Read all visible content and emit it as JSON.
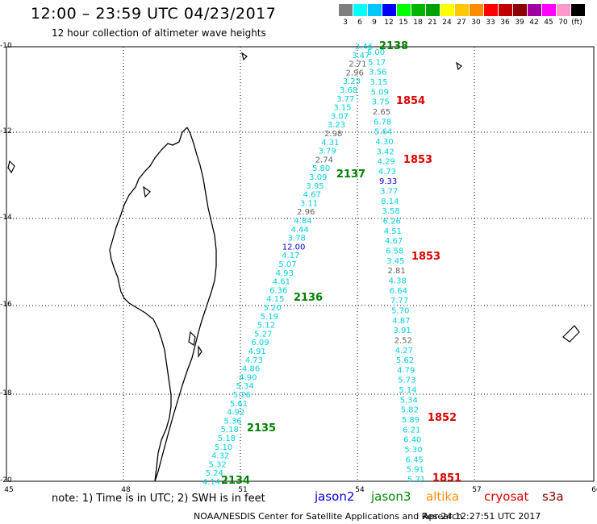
{
  "header": {
    "title": "12:00 – 23:59 UTC 04/23/2017",
    "subtitle": "12 hour collection of altimeter wave heights"
  },
  "color_scale": {
    "unit_label": "(ft)",
    "bins": [
      {
        "label": "3",
        "color": "#7f7f7f"
      },
      {
        "label": "6",
        "color": "#00ffff"
      },
      {
        "label": "9",
        "color": "#00c8ff"
      },
      {
        "label": "12",
        "color": "#0000ff"
      },
      {
        "label": "15",
        "color": "#00ff00"
      },
      {
        "label": "18",
        "color": "#00b400"
      },
      {
        "label": "21",
        "color": "#00a000"
      },
      {
        "label": "24",
        "color": "#ffff00"
      },
      {
        "label": "27",
        "color": "#ffc800"
      },
      {
        "label": "30",
        "color": "#ff8c00"
      },
      {
        "label": "33",
        "color": "#ff0000"
      },
      {
        "label": "36",
        "color": "#c00000"
      },
      {
        "label": "39",
        "color": "#8b0000"
      },
      {
        "label": "42",
        "color": "#a000a0"
      },
      {
        "label": "45",
        "color": "#ff00ff"
      },
      {
        "label": "70",
        "color": "#ff99cc"
      },
      {
        "label": "",
        "color": "#000000"
      }
    ]
  },
  "axes": {
    "y_ticks": [
      "-10",
      "-12",
      "-14",
      "-16",
      "-18",
      "-20"
    ],
    "x_ticks": [
      "45",
      "48",
      "51",
      "54",
      "57",
      "60"
    ]
  },
  "value_colors": {
    "cyan": "#00d0e0",
    "gray": "#606060",
    "blue": "#0000cc"
  },
  "tracks": [
    {
      "name": "west",
      "values": [
        [
          "3.46",
          "cyan"
        ],
        [
          "3.47",
          "cyan"
        ],
        [
          "2.71",
          "gray"
        ],
        [
          "2.96",
          "gray"
        ],
        [
          "3.23",
          "cyan"
        ],
        [
          "3.68",
          "cyan"
        ],
        [
          "3.77",
          "cyan"
        ],
        [
          "3.15",
          "cyan"
        ],
        [
          "3.07",
          "cyan"
        ],
        [
          "3.23",
          "cyan"
        ],
        [
          "2.98",
          "gray"
        ],
        [
          "4.31",
          "cyan"
        ],
        [
          "3.79",
          "cyan"
        ],
        [
          "2.74",
          "gray"
        ],
        [
          "5.80",
          "cyan"
        ],
        [
          "3.09",
          "cyan"
        ],
        [
          "3.95",
          "cyan"
        ],
        [
          "4.67",
          "cyan"
        ],
        [
          "3.11",
          "cyan"
        ],
        [
          "2.96",
          "gray"
        ],
        [
          "4.84",
          "cyan"
        ],
        [
          "4.44",
          "cyan"
        ],
        [
          "3.78",
          "cyan"
        ],
        [
          "12.00",
          "blue"
        ],
        [
          "4.17",
          "cyan"
        ],
        [
          "5.07",
          "cyan"
        ],
        [
          "4.93",
          "cyan"
        ],
        [
          "4.61",
          "cyan"
        ],
        [
          "6.36",
          "cyan"
        ],
        [
          "4.15",
          "cyan"
        ],
        [
          "5.20",
          "cyan"
        ],
        [
          "5.19",
          "cyan"
        ],
        [
          "5.12",
          "cyan"
        ],
        [
          "5.27",
          "cyan"
        ],
        [
          "6.09",
          "cyan"
        ],
        [
          "4.91",
          "cyan"
        ],
        [
          "4.73",
          "cyan"
        ],
        [
          "4.86",
          "cyan"
        ],
        [
          "4.90",
          "cyan"
        ],
        [
          "5.34",
          "cyan"
        ],
        [
          "5.26",
          "cyan"
        ],
        [
          "5.61",
          "cyan"
        ],
        [
          "4.92",
          "cyan"
        ],
        [
          "5.36",
          "cyan"
        ],
        [
          "5.18",
          "cyan"
        ],
        [
          "5.18",
          "cyan"
        ],
        [
          "5.10",
          "cyan"
        ],
        [
          "4.32",
          "cyan"
        ],
        [
          "5.32",
          "cyan"
        ],
        [
          "5.24",
          "cyan"
        ],
        [
          "4.14",
          "cyan"
        ]
      ]
    },
    {
      "name": "east",
      "values": [
        [
          "5.00",
          "cyan"
        ],
        [
          "5.17",
          "cyan"
        ],
        [
          "3.56",
          "cyan"
        ],
        [
          "3.15",
          "cyan"
        ],
        [
          "5.09",
          "cyan"
        ],
        [
          "3.75",
          "cyan"
        ],
        [
          "2.65",
          "gray"
        ],
        [
          "6.78",
          "cyan"
        ],
        [
          "5.64",
          "cyan"
        ],
        [
          "4.30",
          "cyan"
        ],
        [
          "3.42",
          "cyan"
        ],
        [
          "4.29",
          "cyan"
        ],
        [
          "4.73",
          "cyan"
        ],
        [
          "9.33",
          "blue"
        ],
        [
          "3.77",
          "cyan"
        ],
        [
          "8.14",
          "cyan"
        ],
        [
          "3.58",
          "cyan"
        ],
        [
          "6.26",
          "cyan"
        ],
        [
          "4.51",
          "cyan"
        ],
        [
          "4.67",
          "cyan"
        ],
        [
          "6.58",
          "cyan"
        ],
        [
          "3.45",
          "cyan"
        ],
        [
          "2.81",
          "gray"
        ],
        [
          "4.38",
          "cyan"
        ],
        [
          "6.64",
          "cyan"
        ],
        [
          "7.77",
          "cyan"
        ],
        [
          "5.70",
          "cyan"
        ],
        [
          "4.87",
          "cyan"
        ],
        [
          "3.91",
          "cyan"
        ],
        [
          "2.52",
          "gray"
        ],
        [
          "4.27",
          "cyan"
        ],
        [
          "5.62",
          "cyan"
        ],
        [
          "4.79",
          "cyan"
        ],
        [
          "5.73",
          "cyan"
        ],
        [
          "5.14",
          "cyan"
        ],
        [
          "5.34",
          "cyan"
        ],
        [
          "5.82",
          "cyan"
        ],
        [
          "5.89",
          "cyan"
        ],
        [
          "6.21",
          "cyan"
        ],
        [
          "6.40",
          "cyan"
        ],
        [
          "5.30",
          "cyan"
        ],
        [
          "6.45",
          "cyan"
        ],
        [
          "5.91",
          "cyan"
        ],
        [
          "5.71",
          "cyan"
        ]
      ]
    }
  ],
  "time_labels": [
    {
      "text": "2138",
      "color": "#008000"
    },
    {
      "text": "2137",
      "color": "#008000"
    },
    {
      "text": "2136",
      "color": "#008000"
    },
    {
      "text": "2135",
      "color": "#008000"
    },
    {
      "text": "2134",
      "color": "#008000"
    },
    {
      "text": "1854",
      "color": "#dd0000"
    },
    {
      "text": "1853",
      "color": "#dd0000"
    },
    {
      "text": "1853",
      "color": "#dd0000"
    },
    {
      "text": "1852",
      "color": "#dd0000"
    },
    {
      "text": "1851",
      "color": "#dd0000"
    }
  ],
  "footer": {
    "note": "note: 1) Time is in UTC; 2) SWH is in feet",
    "missions": [
      {
        "name": "jason2",
        "color": "#0000dd"
      },
      {
        "name": "jason3",
        "color": "#008800"
      },
      {
        "name": "altika",
        "color": "#ff8c00"
      },
      {
        "name": "cryosat",
        "color": "#dd0000"
      },
      {
        "name": "s3a",
        "color": "#8b0000"
      }
    ],
    "credit": "NOAA/NESDIS Center for Satellite Applications and Research",
    "timestamp": "Apr 24 12:27:51 UTC 2017"
  }
}
